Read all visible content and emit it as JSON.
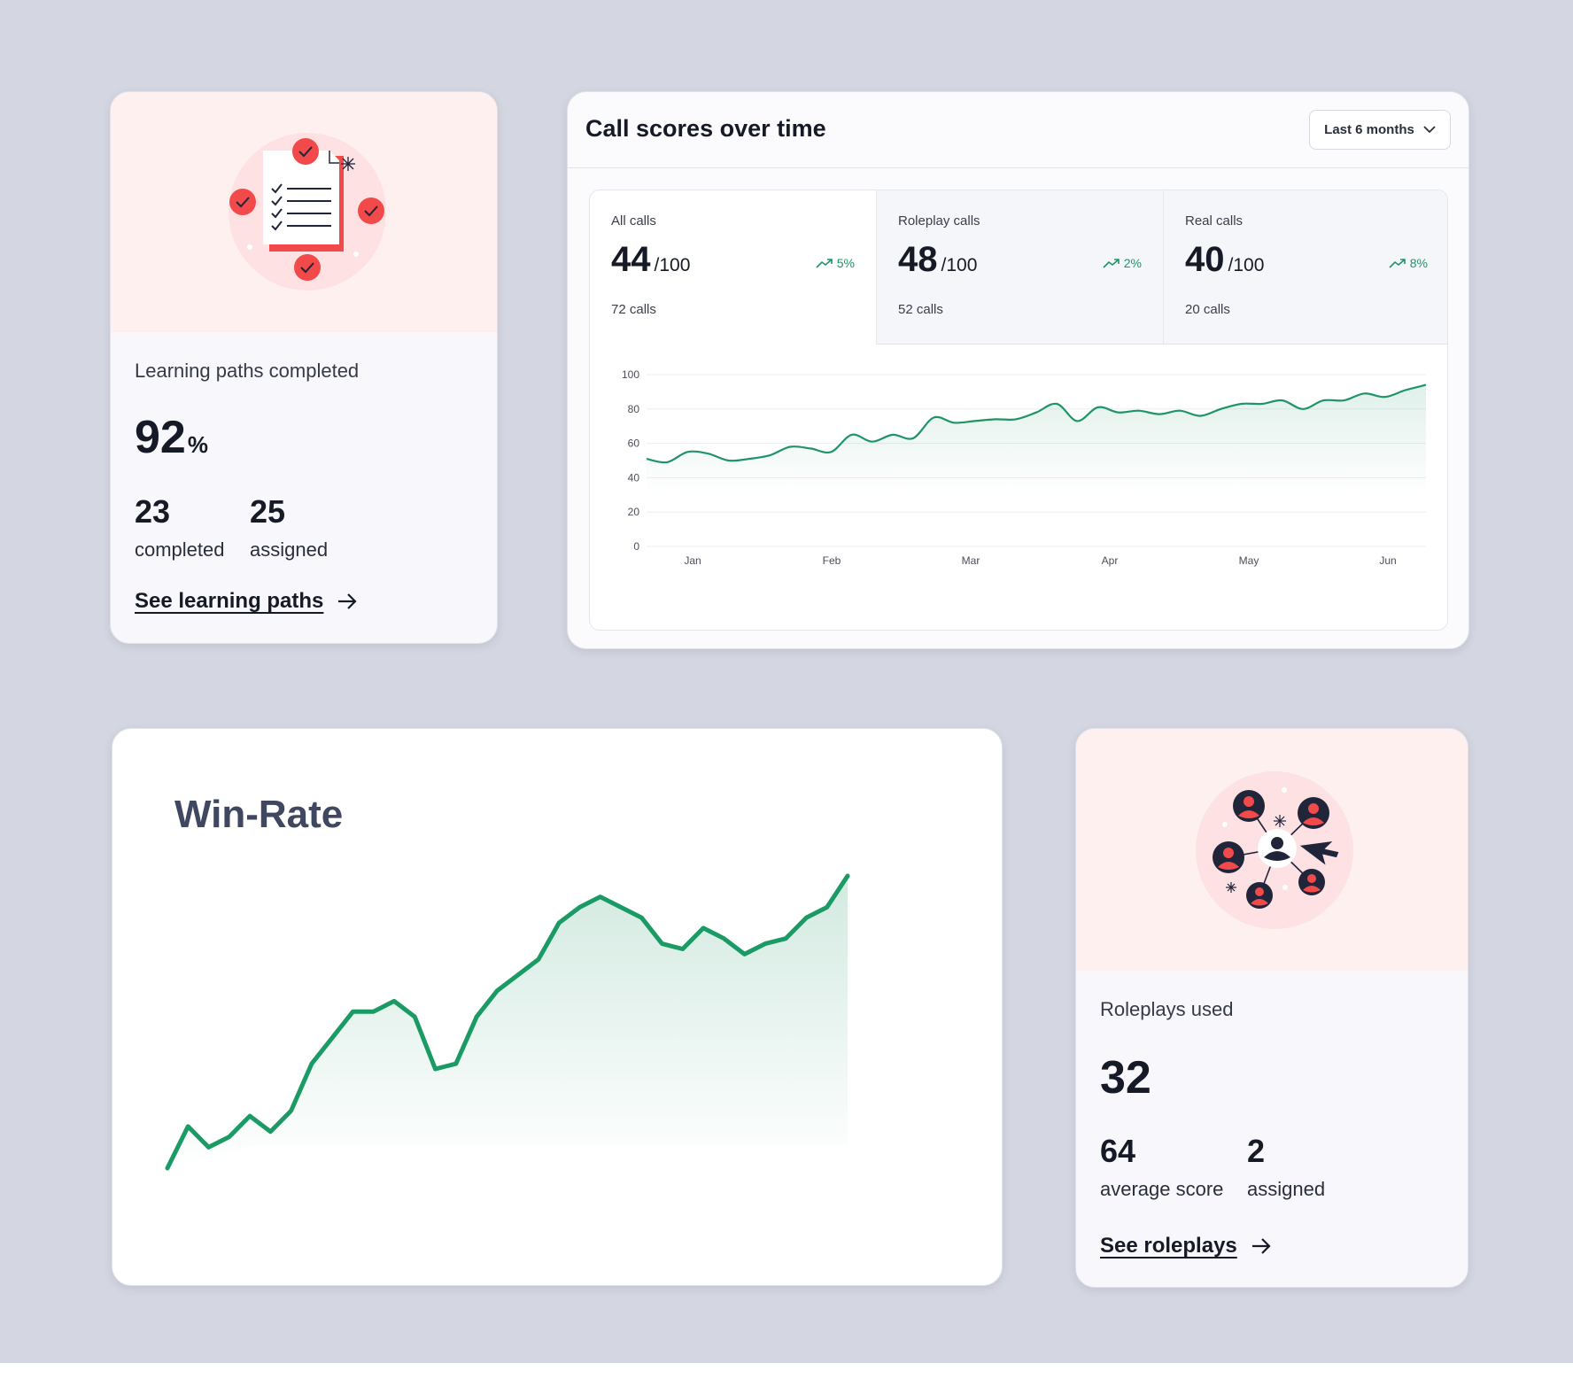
{
  "learning": {
    "label": "Learning paths completed",
    "percent_value": "92",
    "percent_unit": "%",
    "completed_value": "23",
    "completed_label": "completed",
    "assigned_value": "25",
    "assigned_label": "assigned",
    "link_label": "See learning paths"
  },
  "call_scores": {
    "title": "Call scores over time",
    "period": "Last 6 months",
    "tabs": [
      {
        "label": "All calls",
        "score": "44",
        "denom": "/100",
        "trend": "5%",
        "calls": "72 calls"
      },
      {
        "label": "Roleplay calls",
        "score": "48",
        "denom": "/100",
        "trend": "2%",
        "calls": "52 calls"
      },
      {
        "label": "Real calls",
        "score": "40",
        "denom": "/100",
        "trend": "8%",
        "calls": "20 calls"
      }
    ]
  },
  "winrate": {
    "title": "Win-Rate"
  },
  "roleplays": {
    "label": "Roleplays used",
    "used_value": "32",
    "avg_value": "64",
    "avg_label": "average score",
    "assigned_value": "2",
    "assigned_label": "assigned",
    "link_label": "See roleplays"
  },
  "colors": {
    "accent_green": "#1f9466",
    "pink_bg": "#fff0f0",
    "icon_red": "#f24a4a",
    "background": "#d4d7e1"
  },
  "chart_data": [
    {
      "type": "area",
      "title": "",
      "ylim": [
        0,
        100
      ],
      "yticks": [
        "100",
        "80",
        "60",
        "40",
        "20",
        "0"
      ],
      "xticks": [
        "Jan",
        "Feb",
        "Mar",
        "Apr",
        "May",
        "Jun"
      ],
      "series": [
        {
          "x": [
            0,
            0.15,
            0.3,
            0.45,
            0.6,
            0.75,
            0.9,
            1.05,
            1.2,
            1.35,
            1.5,
            1.65,
            1.8,
            1.95,
            2.1,
            2.25,
            2.4,
            2.55,
            2.7,
            2.85,
            3.0,
            3.15,
            3.3,
            3.45,
            3.6,
            3.75,
            3.9,
            4.05,
            4.2,
            4.35,
            4.5,
            4.65,
            4.8,
            4.95,
            5.1,
            5.25,
            5.4,
            5.55,
            5.7
          ],
          "values": [
            51,
            49,
            55,
            54,
            50,
            51,
            53,
            58,
            57,
            55,
            65,
            61,
            65,
            63,
            75,
            72,
            73,
            74,
            74,
            78,
            83,
            73,
            81,
            78,
            79,
            77,
            79,
            76,
            80,
            83,
            83,
            85,
            80,
            85,
            85,
            89,
            87,
            91,
            94
          ]
        }
      ]
    },
    {
      "type": "area",
      "title": "Win-Rate",
      "series": [
        {
          "values": [
            0,
            8,
            4,
            6,
            10,
            7,
            11,
            20,
            25,
            30,
            30,
            32,
            29,
            19,
            20,
            29,
            34,
            37,
            40,
            47,
            50,
            52,
            50,
            48,
            43,
            42,
            46,
            44,
            41,
            43,
            44,
            48,
            50,
            56
          ]
        }
      ]
    }
  ]
}
